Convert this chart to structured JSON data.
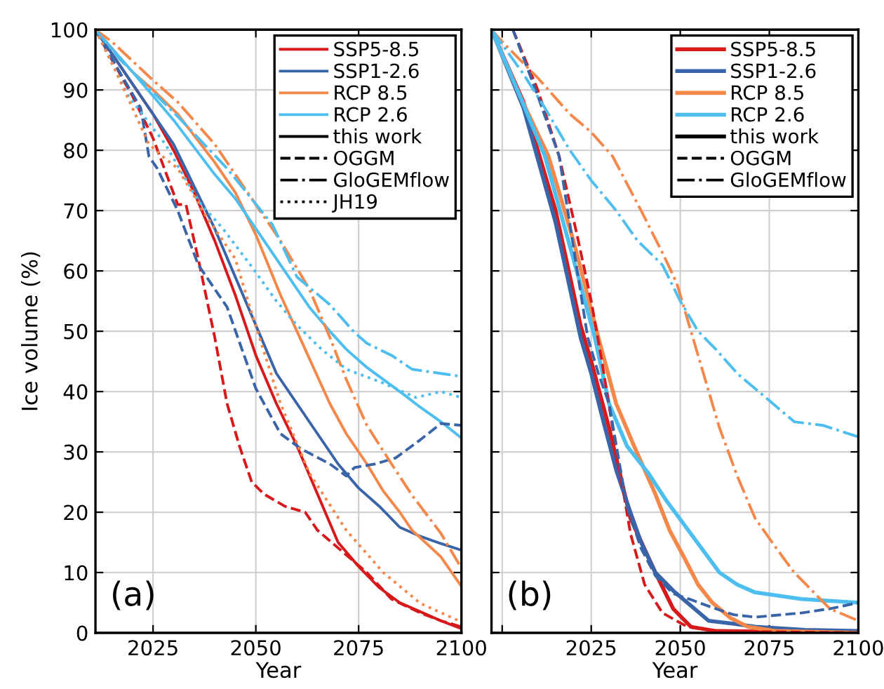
{
  "chart_data": [
    {
      "type": "line",
      "xlabel": "Year",
      "ylabel": "Ice volume (%)",
      "xlim": [
        2011,
        2100
      ],
      "xticks": [
        2025,
        2050,
        2075,
        2100
      ],
      "ylim": [
        0,
        100
      ],
      "yticks": [
        0,
        10,
        20,
        30,
        40,
        50,
        60,
        70,
        80,
        90,
        100
      ],
      "grid": true,
      "legend": "top right",
      "annotations": [
        "(a)"
      ],
      "series": [
        {
          "name": "SSP5-8.5",
          "color": "#d7191c",
          "line_style": "solid",
          "x": [
            2011,
            2015,
            2020,
            2025,
            2030,
            2035,
            2040,
            2045,
            2050,
            2055,
            2060,
            2065,
            2070,
            2075,
            2080,
            2085,
            2090,
            2095,
            2100
          ],
          "values": [
            100,
            96,
            91,
            86,
            80,
            73,
            65,
            56,
            46,
            38,
            31,
            23,
            15,
            11,
            7.5,
            5,
            3.5,
            2,
            0.7
          ]
        },
        {
          "name": "SSP1-2.6",
          "color": "#3a64a8",
          "line_style": "solid",
          "x": [
            2011,
            2015,
            2020,
            2025,
            2030,
            2035,
            2040,
            2045,
            2050,
            2055,
            2060,
            2065,
            2070,
            2075,
            2080,
            2085,
            2090,
            2095,
            2100
          ],
          "values": [
            100,
            96,
            91,
            86,
            81,
            74,
            67,
            59,
            51,
            43,
            38,
            33,
            28,
            24,
            21,
            17.5,
            16,
            14.8,
            13.7
          ]
        },
        {
          "name": "RCP 8.5",
          "color": "#f4884a",
          "line_style": "solid",
          "x": [
            2011,
            2020,
            2025,
            2031,
            2040,
            2045,
            2050,
            2056,
            2060,
            2064,
            2068,
            2072,
            2077,
            2081,
            2085,
            2088,
            2092,
            2095,
            2100
          ],
          "values": [
            100,
            93,
            90,
            86,
            78,
            73,
            66,
            56,
            50,
            44,
            38,
            33,
            28,
            23.5,
            20,
            17,
            14.5,
            12.6,
            7.7
          ]
        },
        {
          "name": "RCP 2.6",
          "color": "#4dbeee",
          "line_style": "solid",
          "x": [
            2011,
            2020,
            2025,
            2030,
            2040,
            2045,
            2050,
            2055,
            2060,
            2063,
            2068,
            2072,
            2077,
            2081,
            2086,
            2090,
            2095,
            2100
          ],
          "values": [
            100,
            93,
            89,
            85,
            76,
            72,
            67,
            62,
            57,
            54,
            50,
            47,
            44,
            42,
            39.5,
            37.4,
            35,
            32.3
          ]
        },
        {
          "name": "this work",
          "color": "#000000",
          "line_style": "solid"
        },
        {
          "name": "OGGM",
          "color": "#000000",
          "line_style": "dashed"
        },
        {
          "name": "GloGEMflow",
          "color": "#000000",
          "line_style": "dashdot"
        },
        {
          "name": "JH19",
          "color": "#000000",
          "line_style": "dotted"
        },
        {
          "color": "#d7191c",
          "line_style": "dashed",
          "x": [
            2011,
            2015,
            2020,
            2025,
            2031,
            2033,
            2036,
            2040,
            2043,
            2046,
            2049,
            2052,
            2057,
            2062,
            2065,
            2071,
            2077,
            2083,
            2090,
            2095,
            2100
          ],
          "values": [
            100,
            95,
            89,
            82,
            71,
            71,
            62,
            49,
            38,
            31,
            25,
            23,
            21,
            20,
            17,
            13.5,
            10,
            5.6,
            3.3,
            2,
            1
          ]
        },
        {
          "color": "#3a64a8",
          "line_style": "dashed",
          "x": [
            2011,
            2016,
            2022,
            2024,
            2026,
            2031,
            2036,
            2038,
            2043,
            2050,
            2056,
            2061,
            2068,
            2072,
            2074,
            2079,
            2084,
            2090,
            2095,
            2100
          ],
          "values": [
            100,
            94,
            87,
            79,
            77,
            70,
            61,
            59,
            54,
            40.5,
            33,
            30.5,
            28,
            26,
            27.4,
            28,
            29,
            32,
            34.7,
            34.4
          ]
        },
        {
          "color": "#f4884a",
          "line_style": "dashdot",
          "x": [
            2011,
            2015,
            2025,
            2031,
            2040,
            2048,
            2056,
            2063,
            2068,
            2072,
            2077,
            2083,
            2088,
            2095,
            2100
          ],
          "values": [
            100,
            98,
            91.6,
            88,
            81,
            73,
            65,
            57,
            49,
            42,
            34.4,
            28,
            22.8,
            16.5,
            10.7
          ]
        },
        {
          "color": "#4dbeee",
          "line_style": "dashdot",
          "x": [
            2011,
            2017,
            2023,
            2031,
            2043,
            2054,
            2060,
            2068,
            2074,
            2077,
            2083,
            2088,
            2095,
            2100
          ],
          "values": [
            100,
            95,
            91,
            85.6,
            77,
            67.7,
            59,
            54.4,
            49.8,
            48,
            46,
            43.7,
            43,
            42.5
          ]
        },
        {
          "color": "#4dbeee",
          "line_style": "dotted",
          "x": [
            2011,
            2019,
            2028,
            2036,
            2042,
            2049,
            2055,
            2060,
            2066,
            2072,
            2081,
            2089,
            2095,
            2100
          ],
          "values": [
            100,
            89,
            81,
            71.6,
            67,
            60.7,
            55,
            51,
            47,
            43.7,
            41.4,
            39,
            40,
            39
          ]
        },
        {
          "color": "#f4884a",
          "line_style": "dotted",
          "x": [
            2011,
            2016,
            2020,
            2024,
            2028,
            2031,
            2038,
            2045,
            2049,
            2056,
            2063,
            2072,
            2081,
            2090,
            2100
          ],
          "values": [
            100,
            93,
            87,
            81,
            78.6,
            77,
            69,
            62,
            53,
            38,
            26.5,
            17,
            10,
            4.9,
            1.8
          ]
        }
      ]
    },
    {
      "type": "line",
      "xlabel": "Year",
      "xlim": [
        1997,
        2100
      ],
      "xticks": [
        {
          "value": 2000,
          "label": null
        },
        2025,
        2050,
        2075,
        2100
      ],
      "ylim": [
        0,
        100
      ],
      "yticks": [
        0,
        10,
        20,
        30,
        40,
        50,
        60,
        70,
        80,
        90,
        100
      ],
      "grid": true,
      "legend": "top right",
      "tick_labels": "x",
      "annotations": [
        "(b)"
      ],
      "series": [
        {
          "name": "SSP5-8.5",
          "color": "#d7191c",
          "line_style": "solid",
          "x": [
            1997,
            2006,
            2015,
            2022,
            2025,
            2030,
            2036,
            2043,
            2048,
            2053,
            2060,
            2100
          ],
          "values": [
            100,
            88,
            70,
            51,
            45,
            34,
            19,
            10,
            4,
            1,
            0.3,
            0
          ]
        },
        {
          "name": "SSP1-2.6",
          "color": "#3a64a8",
          "line_style": "solid",
          "x": [
            1997,
            2006,
            2015,
            2022,
            2025,
            2028,
            2032,
            2036,
            2039,
            2043,
            2048,
            2053,
            2058,
            2065,
            2071,
            2085,
            2100
          ],
          "values": [
            100,
            87,
            68,
            49,
            43,
            36,
            27,
            20,
            15,
            10,
            7,
            4.5,
            2,
            1.5,
            1,
            0.5,
            0.3
          ]
        },
        {
          "name": "RCP 8.5",
          "color": "#f4884a",
          "line_style": "solid",
          "x": [
            1997,
            2005,
            2013,
            2020,
            2027,
            2032,
            2037,
            2043,
            2047,
            2051,
            2055,
            2059,
            2064,
            2069,
            2077,
            2100
          ],
          "values": [
            100,
            89,
            79,
            65,
            49,
            38,
            31,
            23,
            17,
            12.6,
            8,
            5,
            2.5,
            1,
            0.3,
            0
          ]
        },
        {
          "name": "RCP 2.6",
          "color": "#4dbeee",
          "line_style": "solid",
          "x": [
            1997,
            2005,
            2012,
            2020,
            2026,
            2030,
            2035,
            2041,
            2046,
            2051,
            2056,
            2061,
            2066,
            2071,
            2084,
            2100
          ],
          "values": [
            100,
            89,
            79,
            62,
            49,
            38,
            31,
            26.5,
            22,
            18,
            14,
            10,
            8,
            6.7,
            5.6,
            5
          ]
        },
        {
          "name": "this work",
          "color": "#000000",
          "line_style": "solid"
        },
        {
          "name": "OGGM",
          "color": "#000000",
          "line_style": "dashed"
        },
        {
          "name": "GloGEMflow",
          "color": "#000000",
          "line_style": "dashdot"
        },
        {
          "color": "#d7191c",
          "line_style": "dashed",
          "x": [
            2003,
            2010,
            2016,
            2021,
            2025,
            2028,
            2031,
            2036,
            2040,
            2045,
            2052,
            2060,
            2100
          ],
          "values": [
            100,
            90,
            79,
            66,
            55,
            45,
            34,
            16.5,
            8,
            3.3,
            1,
            0.3,
            0
          ]
        },
        {
          "color": "#3a64a8",
          "line_style": "dashed",
          "x": [
            2003,
            2010,
            2016,
            2020,
            2024,
            2027,
            2030,
            2035,
            2039,
            2043,
            2048,
            2053,
            2059,
            2065,
            2071,
            2084,
            2092,
            2100
          ],
          "values": [
            100,
            89,
            79,
            64,
            49,
            43,
            38,
            21,
            14,
            9.5,
            6.5,
            5.5,
            4.2,
            3,
            2.6,
            3.3,
            4,
            5
          ]
        },
        {
          "color": "#f4884a",
          "line_style": "dashdot",
          "x": [
            1997,
            2000,
            2010,
            2019,
            2025,
            2031,
            2039,
            2045,
            2049,
            2051,
            2055,
            2061,
            2066,
            2071,
            2077,
            2082,
            2092,
            2100
          ],
          "values": [
            100,
            98,
            92,
            86,
            83,
            79,
            70,
            63,
            58,
            54,
            46,
            34,
            26,
            19,
            14,
            10,
            4,
            2
          ]
        },
        {
          "color": "#4dbeee",
          "line_style": "dashdot",
          "x": [
            1997,
            2006,
            2012,
            2019,
            2025,
            2032,
            2038,
            2045,
            2050,
            2055,
            2060,
            2066,
            2074,
            2082,
            2090,
            2100
          ],
          "values": [
            100,
            92.6,
            87,
            80,
            75,
            70,
            65,
            61,
            55,
            50,
            47,
            43,
            39,
            35,
            34.4,
            32.5
          ]
        }
      ]
    }
  ]
}
